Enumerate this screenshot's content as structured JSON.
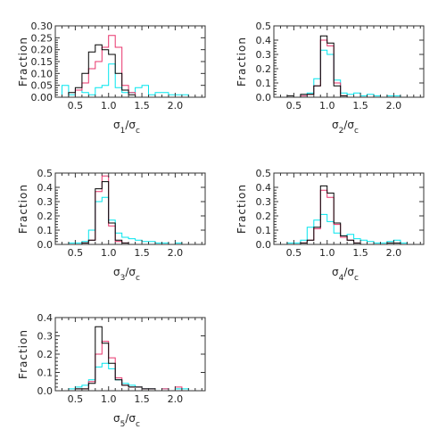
{
  "colors": {
    "series_1": "#000000",
    "series_2": "#e8336b",
    "series_3": "#00e5ee"
  },
  "chart_data": [
    {
      "type": "histogram",
      "title": "",
      "xlabel": "σ1/σc",
      "xlabel_parts": {
        "main": "σ",
        "sub": "1",
        "mid": "/σ",
        "sub2": "c"
      },
      "ylabel": "Fraction",
      "xlim": [
        0.2,
        2.45
      ],
      "ylim": [
        0,
        0.3
      ],
      "xticks": [
        "0.5",
        "1.0",
        "1.5",
        "2.0"
      ],
      "xtick_values": [
        0.5,
        1.0,
        1.5,
        2.0
      ],
      "yticks": [
        "0.00",
        "0.05",
        "0.10",
        "0.15",
        "0.20",
        "0.25",
        "0.30"
      ],
      "ytick_values": [
        0,
        0.05,
        0.1,
        0.15,
        0.2,
        0.25,
        0.3
      ],
      "bin_edges": [
        0.2,
        0.3,
        0.4,
        0.5,
        0.6,
        0.7,
        0.8,
        0.9,
        1.0,
        1.1,
        1.2,
        1.3,
        1.4,
        1.5,
        1.6,
        1.7,
        1.8,
        1.9,
        2.0,
        2.1,
        2.2,
        2.3,
        2.4
      ],
      "series": [
        {
          "values": [
            0,
            0,
            0.02,
            0.04,
            0.1,
            0.19,
            0.22,
            0.2,
            0.18,
            0.1,
            0.03,
            0.01,
            0,
            0,
            0,
            0,
            0,
            0,
            0,
            0,
            0,
            0
          ]
        },
        {
          "values": [
            0,
            0,
            0,
            0.03,
            0.06,
            0.12,
            0.15,
            0.21,
            0.26,
            0.21,
            0.05,
            0.02,
            0,
            0,
            0,
            0,
            0,
            0,
            0,
            0,
            0,
            0
          ]
        },
        {
          "values": [
            0,
            0.05,
            0.01,
            0.03,
            0.02,
            0.01,
            0.04,
            0.05,
            0.14,
            0.04,
            0.02,
            0.02,
            0.04,
            0.05,
            0.01,
            0.02,
            0.02,
            0.01,
            0.01,
            0.01,
            0,
            0
          ]
        }
      ]
    },
    {
      "type": "histogram",
      "title": "",
      "xlabel": "σ2/σc",
      "xlabel_parts": {
        "main": "σ",
        "sub": "2",
        "mid": "/σ",
        "sub2": "c"
      },
      "ylabel": "Fraction",
      "xlim": [
        0.2,
        2.45
      ],
      "ylim": [
        0,
        0.5
      ],
      "xticks": [
        "0.5",
        "1.0",
        "1.5",
        "2.0"
      ],
      "xtick_values": [
        0.5,
        1.0,
        1.5,
        2.0
      ],
      "yticks": [
        "0.0",
        "0.1",
        "0.2",
        "0.3",
        "0.4",
        "0.5"
      ],
      "ytick_values": [
        0,
        0.1,
        0.2,
        0.3,
        0.4,
        0.5
      ],
      "bin_edges": [
        0.3,
        0.4,
        0.5,
        0.6,
        0.7,
        0.8,
        0.9,
        1.0,
        1.1,
        1.2,
        1.3,
        1.4,
        1.5,
        1.6,
        1.7,
        1.8,
        1.9,
        2.0,
        2.1,
        2.2,
        2.3
      ],
      "series": [
        {
          "values": [
            0,
            0.01,
            0,
            0.02,
            0.02,
            0.08,
            0.43,
            0.38,
            0.08,
            0.01,
            0,
            0,
            0,
            0,
            0,
            0,
            0,
            0,
            0,
            0
          ]
        },
        {
          "values": [
            0,
            0,
            0,
            0.01,
            0.02,
            0.08,
            0.4,
            0.36,
            0.1,
            0.01,
            0,
            0,
            0,
            0,
            0,
            0,
            0,
            0,
            0,
            0
          ]
        },
        {
          "values": [
            0,
            0,
            0,
            0.01,
            0.03,
            0.13,
            0.33,
            0.3,
            0.12,
            0.03,
            0.02,
            0.03,
            0.01,
            0.02,
            0.01,
            0,
            0.01,
            0.01,
            0,
            0
          ]
        }
      ]
    },
    {
      "type": "histogram",
      "title": "",
      "xlabel": "σ3/σc",
      "xlabel_parts": {
        "main": "σ",
        "sub": "3",
        "mid": "/σ",
        "sub2": "c"
      },
      "ylabel": "Fraction",
      "xlim": [
        0.2,
        2.45
      ],
      "ylim": [
        0,
        0.5
      ],
      "xticks": [
        "0.5",
        "1.0",
        "1.5",
        "2.0"
      ],
      "xtick_values": [
        0.5,
        1.0,
        1.5,
        2.0
      ],
      "yticks": [
        "0.0",
        "0.1",
        "0.2",
        "0.3",
        "0.4",
        "0.5"
      ],
      "ytick_values": [
        0,
        0.1,
        0.2,
        0.3,
        0.4,
        0.5
      ],
      "bin_edges": [
        0.3,
        0.4,
        0.5,
        0.6,
        0.7,
        0.8,
        0.9,
        1.0,
        1.1,
        1.2,
        1.3,
        1.4,
        1.5,
        1.6,
        1.7,
        1.8,
        1.9,
        2.0,
        2.1,
        2.2,
        2.3
      ],
      "series": [
        {
          "values": [
            0,
            0,
            0,
            0.01,
            0.03,
            0.39,
            0.44,
            0.15,
            0.03,
            0.01,
            0,
            0,
            0,
            0,
            0,
            0,
            0,
            0,
            0,
            0
          ]
        },
        {
          "values": [
            0,
            0,
            0,
            0.01,
            0.03,
            0.37,
            0.48,
            0.13,
            0.02,
            0.01,
            0,
            0,
            0,
            0,
            0,
            0,
            0,
            0,
            0,
            0
          ]
        },
        {
          "values": [
            0,
            0.01,
            0.01,
            0.02,
            0.1,
            0.3,
            0.33,
            0.17,
            0.08,
            0.05,
            0.04,
            0.03,
            0.02,
            0.02,
            0.01,
            0.01,
            0,
            0.01,
            0,
            0
          ]
        }
      ]
    },
    {
      "type": "histogram",
      "title": "",
      "xlabel": "σ4/σc",
      "xlabel_parts": {
        "main": "σ",
        "sub": "4",
        "mid": "/σ",
        "sub2": "c"
      },
      "ylabel": "Fraction",
      "xlim": [
        0.2,
        2.45
      ],
      "ylim": [
        0,
        0.5
      ],
      "xticks": [
        "0.5",
        "1.0",
        "1.5",
        "2.0"
      ],
      "xtick_values": [
        0.5,
        1.0,
        1.5,
        2.0
      ],
      "yticks": [
        "0.0",
        "0.1",
        "0.2",
        "0.3",
        "0.4",
        "0.5"
      ],
      "ytick_values": [
        0,
        0.1,
        0.2,
        0.3,
        0.4,
        0.5
      ],
      "bin_edges": [
        0.3,
        0.4,
        0.5,
        0.6,
        0.7,
        0.8,
        0.9,
        1.0,
        1.1,
        1.2,
        1.3,
        1.4,
        1.5,
        1.6,
        1.7,
        1.8,
        1.9,
        2.0,
        2.1,
        2.2,
        2.3
      ],
      "series": [
        {
          "values": [
            0,
            0,
            0,
            0.01,
            0.03,
            0.12,
            0.41,
            0.36,
            0.15,
            0.06,
            0.03,
            0.01,
            0,
            0,
            0,
            0,
            0.01,
            0.01,
            0,
            0
          ]
        },
        {
          "values": [
            0,
            0,
            0,
            0.01,
            0.03,
            0.11,
            0.38,
            0.33,
            0.14,
            0.05,
            0.03,
            0.01,
            0,
            0,
            0,
            0,
            0,
            0,
            0,
            0
          ]
        },
        {
          "values": [
            0,
            0.01,
            0.01,
            0.03,
            0.12,
            0.17,
            0.21,
            0.16,
            0.08,
            0.06,
            0.07,
            0.04,
            0.03,
            0.02,
            0.01,
            0.01,
            0.02,
            0.03,
            0.01,
            0
          ]
        }
      ]
    },
    {
      "type": "histogram",
      "title": "",
      "xlabel": "σ5/σc",
      "xlabel_parts": {
        "main": "σ",
        "sub": "5",
        "mid": "/σ",
        "sub2": "c"
      },
      "ylabel": "Fraction",
      "xlim": [
        0.2,
        2.45
      ],
      "ylim": [
        0,
        0.4
      ],
      "xticks": [
        "0.5",
        "1.0",
        "1.5",
        "2.0"
      ],
      "xtick_values": [
        0.5,
        1.0,
        1.5,
        2.0
      ],
      "yticks": [
        "0.0",
        "0.1",
        "0.2",
        "0.3",
        "0.4"
      ],
      "ytick_values": [
        0,
        0.1,
        0.2,
        0.3,
        0.4
      ],
      "bin_edges": [
        0.3,
        0.4,
        0.5,
        0.6,
        0.7,
        0.8,
        0.9,
        1.0,
        1.1,
        1.2,
        1.3,
        1.4,
        1.5,
        1.6,
        1.7,
        1.8,
        1.9,
        2.0,
        2.1,
        2.2,
        2.3
      ],
      "series": [
        {
          "values": [
            0,
            0,
            0.01,
            0.01,
            0.04,
            0.35,
            0.26,
            0.15,
            0.06,
            0.03,
            0.02,
            0.02,
            0.01,
            0.01,
            0,
            0,
            0,
            0,
            0,
            0
          ]
        },
        {
          "values": [
            0,
            0,
            0.01,
            0.01,
            0.05,
            0.2,
            0.27,
            0.18,
            0.07,
            0.03,
            0.02,
            0.02,
            0.01,
            0.01,
            0,
            0.01,
            0,
            0.02,
            0,
            0
          ]
        },
        {
          "values": [
            0,
            0.01,
            0.02,
            0.03,
            0.06,
            0.13,
            0.15,
            0.12,
            0.06,
            0.04,
            0.03,
            0.02,
            0.01,
            0.01,
            0,
            0.01,
            0,
            0.01,
            0.01,
            0
          ]
        }
      ]
    }
  ]
}
